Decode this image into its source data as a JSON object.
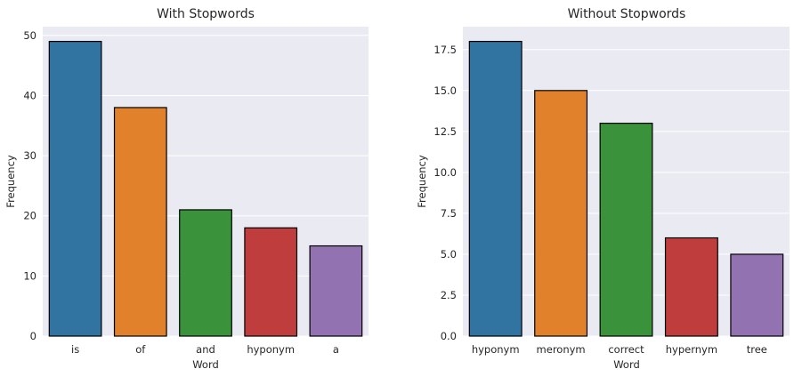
{
  "chart_data": [
    {
      "type": "bar",
      "title": "With Stopwords",
      "xlabel": "Word",
      "ylabel": "Frequency",
      "categories": [
        "is",
        "of",
        "and",
        "hyponym",
        "a"
      ],
      "values": [
        49,
        38,
        21,
        18,
        15
      ],
      "colors": [
        "#3274a1",
        "#e1812c",
        "#3a923a",
        "#c03d3e",
        "#9372b2"
      ],
      "ylim": [
        0,
        51.45
      ],
      "yticks": [
        0,
        10,
        20,
        30,
        40,
        50
      ],
      "ytick_labels": [
        "0",
        "10",
        "20",
        "30",
        "40",
        "50"
      ],
      "grid": true
    },
    {
      "type": "bar",
      "title": "Without Stopwords",
      "xlabel": "Word",
      "ylabel": "Frequency",
      "categories": [
        "hyponym",
        "meronym",
        "correct",
        "hypernym",
        "tree"
      ],
      "values": [
        18,
        15,
        13,
        6,
        5
      ],
      "colors": [
        "#3274a1",
        "#e1812c",
        "#3a923a",
        "#c03d3e",
        "#9372b2"
      ],
      "ylim": [
        0,
        18.9
      ],
      "yticks": [
        0,
        2.5,
        5,
        7.5,
        10,
        12.5,
        15,
        17.5
      ],
      "ytick_labels": [
        "0.0",
        "2.5",
        "5.0",
        "7.5",
        "10.0",
        "12.5",
        "15.0",
        "17.5"
      ],
      "grid": true
    }
  ]
}
